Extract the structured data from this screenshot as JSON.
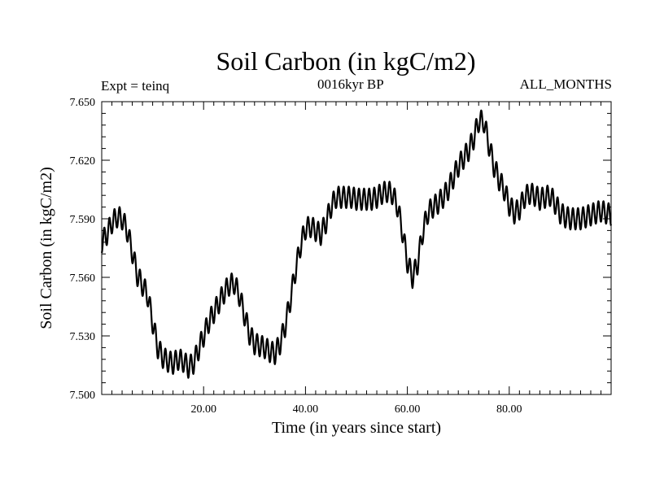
{
  "header": {
    "title": "Soil Carbon (in kgC/m2)",
    "expt": "Expt = teinq",
    "subtitle": "0016kyr BP",
    "months": "ALL_MONTHS"
  },
  "chart_data": {
    "type": "line",
    "title": "Soil Carbon (in kgC/m2)",
    "xlabel": "Time (in years since start)",
    "ylabel": "Soil Carbon (in kgC/m2)",
    "xlim": [
      0,
      100
    ],
    "ylim": [
      7.5,
      7.65
    ],
    "xticks": [
      20,
      40,
      60,
      80
    ],
    "xtick_labels": [
      "20.00",
      "40.00",
      "60.00",
      "80.00"
    ],
    "yticks": [
      7.5,
      7.53,
      7.56,
      7.59,
      7.62,
      7.65
    ],
    "ytick_labels": [
      "7.500",
      "7.530",
      "7.560",
      "7.590",
      "7.620",
      "7.650"
    ],
    "grid": false,
    "seasonal_amplitude": 0.0055,
    "series": [
      {
        "x": [
          0,
          1,
          2,
          3,
          4,
          5,
          6,
          7,
          8,
          9,
          10,
          11,
          12,
          13,
          14,
          15,
          16,
          17,
          18,
          19,
          20,
          21,
          22,
          23,
          24,
          25,
          26,
          27,
          28,
          29,
          30,
          31,
          32,
          33,
          34,
          35,
          36,
          37,
          38,
          39,
          40,
          41,
          42,
          43,
          44,
          45,
          46,
          47,
          48,
          49,
          50,
          51,
          52,
          53,
          54,
          55,
          56,
          57,
          58,
          59,
          60,
          61,
          62,
          63,
          64,
          65,
          66,
          67,
          68,
          69,
          70,
          71,
          72,
          73,
          74,
          75,
          76,
          77,
          78,
          79,
          80,
          81,
          82,
          83,
          84,
          85,
          86,
          87,
          88,
          89,
          90,
          91,
          92,
          93,
          94,
          95,
          96,
          97,
          98,
          99,
          100
        ],
        "y": [
          7.578,
          7.582,
          7.588,
          7.591,
          7.59,
          7.584,
          7.573,
          7.561,
          7.556,
          7.551,
          7.537,
          7.524,
          7.519,
          7.517,
          7.516,
          7.518,
          7.517,
          7.514,
          7.516,
          7.523,
          7.53,
          7.537,
          7.542,
          7.547,
          7.552,
          7.556,
          7.557,
          7.551,
          7.541,
          7.531,
          7.526,
          7.525,
          7.524,
          7.522,
          7.521,
          7.526,
          7.535,
          7.548,
          7.563,
          7.576,
          7.585,
          7.586,
          7.584,
          7.582,
          7.588,
          7.596,
          7.601,
          7.601,
          7.601,
          7.601,
          7.6,
          7.6,
          7.6,
          7.6,
          7.601,
          7.603,
          7.604,
          7.603,
          7.597,
          7.584,
          7.568,
          7.56,
          7.567,
          7.583,
          7.593,
          7.596,
          7.598,
          7.601,
          7.605,
          7.611,
          7.617,
          7.621,
          7.625,
          7.631,
          7.64,
          7.64,
          7.628,
          7.617,
          7.61,
          7.605,
          7.597,
          7.593,
          7.595,
          7.601,
          7.603,
          7.602,
          7.6,
          7.601,
          7.602,
          7.598,
          7.593,
          7.591,
          7.59,
          7.59,
          7.59,
          7.591,
          7.592,
          7.593,
          7.594,
          7.593,
          7.592
        ]
      }
    ]
  }
}
